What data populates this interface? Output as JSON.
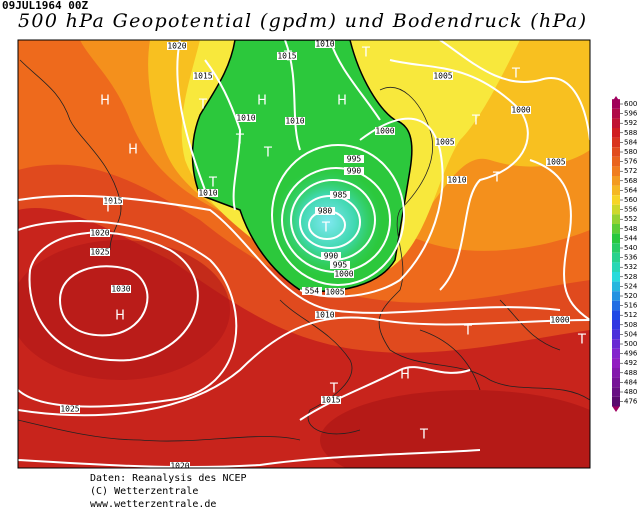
{
  "header": {
    "date": "09JUL1964 00Z",
    "title": "500 hPa Geopotential (gpdm) und Bodendruck (hPa)"
  },
  "map": {
    "isobar_labels": [
      1020,
      1015,
      1015,
      1010,
      1005,
      1000,
      1005,
      1010,
      1005,
      1000,
      995,
      990,
      985,
      980,
      990,
      995,
      1000,
      1005,
      1010,
      1010,
      1010,
      1010,
      1015,
      1020,
      1025,
      1030,
      1025,
      1015,
      1020,
      1000,
      554
    ],
    "pressure_centers": [
      "H",
      "H",
      "H",
      "H",
      "H",
      "H",
      "T",
      "T",
      "T",
      "T",
      "T",
      "T",
      "T",
      "T",
      "T",
      "T",
      "T",
      "T",
      "T",
      "T",
      "T"
    ]
  },
  "colorbar": {
    "ticks": [
      600,
      596,
      592,
      588,
      584,
      580,
      576,
      572,
      568,
      564,
      560,
      556,
      552,
      548,
      544,
      540,
      536,
      532,
      528,
      524,
      520,
      516,
      512,
      508,
      504,
      500,
      496,
      492,
      488,
      484,
      480,
      476
    ]
  },
  "footer": {
    "lines": [
      "Daten: Reanalysis des NCEP",
      "(C) Wetterzentrale",
      "www.wetterzentrale.de"
    ]
  }
}
